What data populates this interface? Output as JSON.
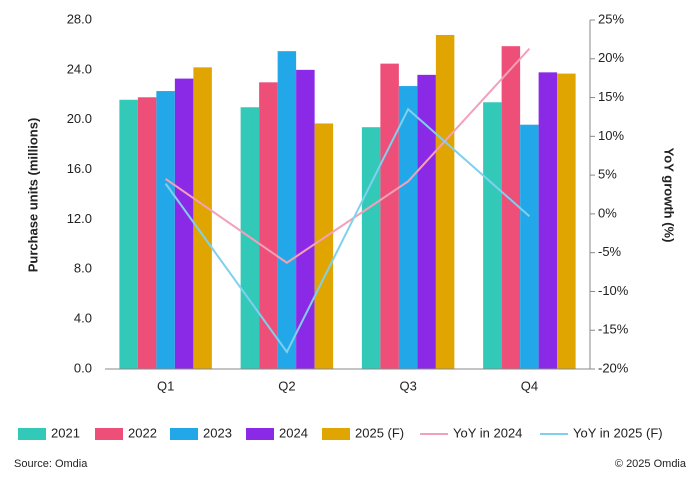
{
  "chart_data": {
    "type": "bar",
    "categories": [
      "Q1",
      "Q2",
      "Q3",
      "Q4"
    ],
    "y_label": "Purchase units (millions)",
    "y2_label": "YoY growth (%)",
    "ylim": [
      0,
      28
    ],
    "yticks": [
      {
        "value": 0,
        "label": "0.0"
      },
      {
        "value": 4,
        "label": "4.0"
      },
      {
        "value": 8,
        "label": "8.0"
      },
      {
        "value": 12,
        "label": "12.0"
      },
      {
        "value": 16,
        "label": "16.0"
      },
      {
        "value": 20,
        "label": "20.0"
      },
      {
        "value": 24,
        "label": "24.0"
      },
      {
        "value": 28,
        "label": "28.0"
      }
    ],
    "y2lim": [
      -20,
      25
    ],
    "y2ticks": [
      {
        "value": -20,
        "label": "-20%"
      },
      {
        "value": -15,
        "label": "-15%"
      },
      {
        "value": -10,
        "label": "-10%"
      },
      {
        "value": -5,
        "label": "-5%"
      },
      {
        "value": 0,
        "label": "0%"
      },
      {
        "value": 5,
        "label": "5%"
      },
      {
        "value": 10,
        "label": "10%"
      },
      {
        "value": 15,
        "label": "15%"
      },
      {
        "value": 20,
        "label": "20%"
      },
      {
        "value": 25,
        "label": "25%"
      }
    ],
    "series": [
      {
        "name": "2021",
        "type": "bar",
        "color": "#33c9b8",
        "values": [
          21.6,
          21.0,
          19.4,
          21.4
        ]
      },
      {
        "name": "2022",
        "type": "bar",
        "color": "#ee4f78",
        "values": [
          21.8,
          23.0,
          24.5,
          25.9
        ]
      },
      {
        "name": "2023",
        "type": "bar",
        "color": "#22a8e8",
        "values": [
          22.3,
          25.5,
          22.7,
          19.6
        ]
      },
      {
        "name": "2024",
        "type": "bar",
        "color": "#8b2ae6",
        "values": [
          23.3,
          24.0,
          23.6,
          23.8
        ]
      },
      {
        "name": "2025 (F)",
        "type": "bar",
        "color": "#e0a500",
        "values": [
          24.2,
          19.7,
          26.8,
          23.7
        ]
      },
      {
        "name": "YoY in 2024",
        "type": "line",
        "axis": "y2",
        "color": "#f4a0b8",
        "values": [
          4.5,
          -6.3,
          4.2,
          21.3
        ]
      },
      {
        "name": "YoY in 2025 (F)",
        "type": "line",
        "axis": "y2",
        "color": "#7fd0ee",
        "values": [
          3.9,
          -17.8,
          13.5,
          -0.3
        ]
      }
    ],
    "source": "Source: Omdia",
    "copyright": "© 2025 Omdia"
  }
}
